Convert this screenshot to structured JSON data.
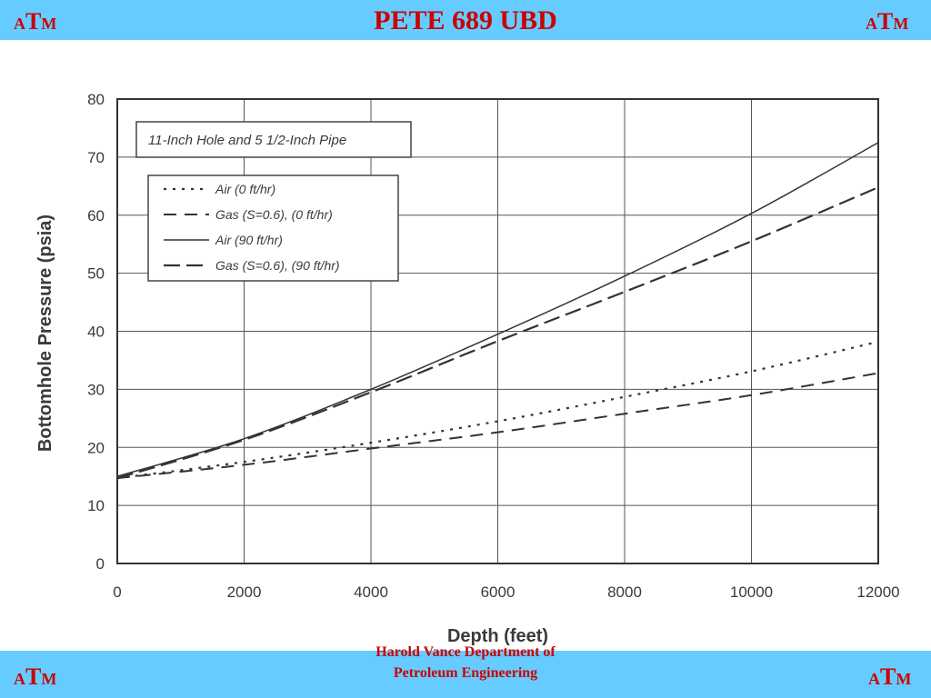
{
  "header": {
    "title": "PETE 689 UBD",
    "logo_left": {
      "a": "A",
      "t": "T",
      "m": "M"
    },
    "logo_right": {
      "a": "A",
      "t": "T",
      "m": "M"
    }
  },
  "footer": {
    "line1": "Harold Vance Department of",
    "line2": "Petroleum Engineering",
    "logo_left": {
      "a": "A",
      "t": "T",
      "m": "M"
    },
    "logo_right": {
      "a": "A",
      "t": "T",
      "m": "M"
    }
  },
  "colors": {
    "band": "#66ccff",
    "brand": "#cc0000",
    "ink": "#3a3a3a",
    "grid": "#555555"
  },
  "chart_data": {
    "type": "line",
    "title": "11-Inch Hole and 5 1/2-Inch Pipe",
    "xlabel": "Depth (feet)",
    "ylabel": "Bottomhole Pressure (psia)",
    "xlim": [
      0,
      12000
    ],
    "ylim": [
      0,
      80
    ],
    "xticks": [
      0,
      2000,
      4000,
      6000,
      8000,
      10000,
      12000
    ],
    "yticks": [
      0,
      10,
      20,
      30,
      40,
      50,
      60,
      70,
      80
    ],
    "grid": true,
    "legend_position": "upper-left",
    "x": [
      0,
      2000,
      4000,
      6000,
      8000,
      10000,
      12000
    ],
    "series": [
      {
        "name": "Air (0 ft/hr)",
        "style": "dotted",
        "values": [
          14.7,
          17.5,
          20.8,
          24.5,
          28.7,
          33.1,
          38.2
        ]
      },
      {
        "name": "Gas (S=0.6), (0 ft/hr)",
        "style": "dashed",
        "values": [
          14.7,
          17.0,
          19.8,
          22.6,
          25.8,
          29.0,
          32.8
        ]
      },
      {
        "name": "Air (90 ft/hr)",
        "style": "solid",
        "values": [
          15.0,
          21.5,
          30.0,
          39.5,
          49.5,
          60.3,
          72.5
        ]
      },
      {
        "name": "Gas (S=0.6), (90 ft/hr)",
        "style": "long-dashed",
        "values": [
          14.7,
          21.3,
          29.5,
          38.3,
          46.8,
          55.5,
          64.8
        ]
      }
    ]
  }
}
